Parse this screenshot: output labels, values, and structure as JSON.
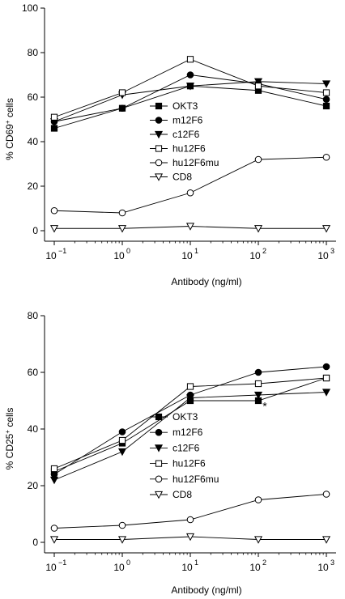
{
  "chart_data": [
    {
      "type": "line",
      "panel": "top",
      "title": "",
      "xlabel": "Antibody (ng/ml)",
      "ylabel": "% CD69",
      "ylabel_sup": "+",
      "ylabel_suffix": " cells",
      "xscale": "log",
      "x": [
        0.1,
        1,
        10,
        100,
        1000
      ],
      "xtick_labels": [
        {
          "base": "10",
          "exp": "−1"
        },
        {
          "base": "10",
          "exp": "0"
        },
        {
          "base": "10",
          "exp": "1"
        },
        {
          "base": "10",
          "exp": "2"
        },
        {
          "base": "10",
          "exp": "3"
        }
      ],
      "ylim": [
        0,
        100
      ],
      "yticks": [
        "0",
        "20",
        "40",
        "60",
        "80",
        "100"
      ],
      "grid": false,
      "legend_position": "center",
      "annotations": [],
      "series": [
        {
          "name": "OKT3",
          "marker": "square-filled",
          "values": [
            46,
            55,
            65,
            63,
            56
          ]
        },
        {
          "name": "m12F6",
          "marker": "circle-filled",
          "values": [
            49,
            55,
            70,
            66,
            59
          ]
        },
        {
          "name": "c12F6",
          "marker": "triangle-down-filled",
          "values": [
            49,
            61,
            65,
            67,
            66
          ]
        },
        {
          "name": "hu12F6",
          "marker": "square-open",
          "values": [
            51,
            62,
            77,
            65,
            62
          ]
        },
        {
          "name": "hu12F6mu",
          "marker": "circle-open",
          "values": [
            9,
            8,
            17,
            32,
            33
          ]
        },
        {
          "name": "CD8",
          "marker": "triangle-down-open",
          "values": [
            1,
            1,
            2,
            1,
            1
          ]
        }
      ]
    },
    {
      "type": "line",
      "panel": "bottom",
      "title": "",
      "xlabel": "Antibody (ng/ml)",
      "ylabel": "% CD25",
      "ylabel_sup": "+",
      "ylabel_suffix": " cells",
      "xscale": "log",
      "x": [
        0.1,
        1,
        10,
        100,
        1000
      ],
      "xtick_labels": [
        {
          "base": "10",
          "exp": "−1"
        },
        {
          "base": "10",
          "exp": "0"
        },
        {
          "base": "10",
          "exp": "1"
        },
        {
          "base": "10",
          "exp": "2"
        },
        {
          "base": "10",
          "exp": "3"
        }
      ],
      "ylim": [
        0,
        80
      ],
      "yticks": [
        "0",
        "20",
        "40",
        "60",
        "80"
      ],
      "grid": false,
      "legend_position": "center-right",
      "annotations": [
        {
          "text": "*",
          "x": 100,
          "y": 49
        }
      ],
      "series": [
        {
          "name": "OKT3",
          "marker": "square-filled",
          "values": [
            25,
            35,
            50,
            50,
            58
          ]
        },
        {
          "name": "m12F6",
          "marker": "circle-filled",
          "values": [
            24,
            39,
            52,
            60,
            62
          ]
        },
        {
          "name": "c12F6",
          "marker": "triangle-down-filled",
          "values": [
            22,
            32,
            51,
            52,
            53
          ]
        },
        {
          "name": "hu12F6",
          "marker": "square-open",
          "values": [
            26,
            36,
            55,
            56,
            58
          ]
        },
        {
          "name": "hu12F6mu",
          "marker": "circle-open",
          "values": [
            5,
            6,
            8,
            15,
            17
          ]
        },
        {
          "name": "CD8",
          "marker": "triangle-down-open",
          "values": [
            1,
            1,
            2,
            1,
            1
          ]
        }
      ]
    }
  ]
}
